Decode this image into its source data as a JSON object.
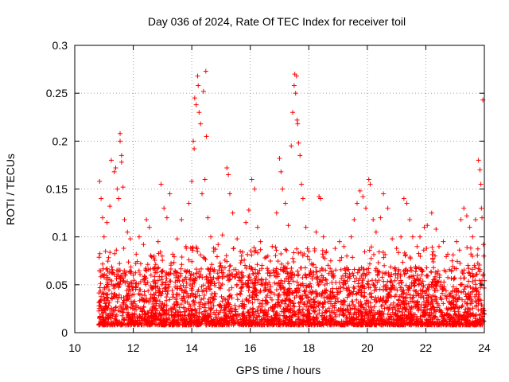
{
  "chart_data": {
    "type": "scatter",
    "title": "Day 036 of 2024, Rate Of TEC Index for receiver toil",
    "xlabel": "GPS time / hours",
    "ylabel": "ROTI / TECUs",
    "xlim": [
      10,
      24
    ],
    "ylim": [
      0,
      0.3
    ],
    "x_ticks": [
      10,
      12,
      14,
      16,
      18,
      20,
      22,
      24
    ],
    "y_ticks": [
      0,
      0.05,
      0.1,
      0.15,
      0.2,
      0.25,
      0.3
    ],
    "x_tick_labels": [
      "10",
      "12",
      "14",
      "16",
      "18",
      "20",
      "22",
      "24"
    ],
    "y_tick_labels": [
      "0",
      "0.05",
      "0.1",
      "0.15",
      "0.2",
      "0.25",
      "0.3"
    ],
    "grid": true,
    "marker": "+",
    "color": "#ff0000",
    "series": [
      {
        "name": "ROTI",
        "points": [
          [
            10.85,
            0.158
          ],
          [
            10.9,
            0.14
          ],
          [
            10.95,
            0.12
          ],
          [
            11.0,
            0.1
          ],
          [
            11.05,
            0.085
          ],
          [
            11.1,
            0.115
          ],
          [
            11.2,
            0.132
          ],
          [
            11.25,
            0.18
          ],
          [
            11.35,
            0.168
          ],
          [
            11.4,
            0.172
          ],
          [
            11.45,
            0.15
          ],
          [
            11.5,
            0.14
          ],
          [
            11.55,
            0.208
          ],
          [
            11.55,
            0.2
          ],
          [
            11.6,
            0.185
          ],
          [
            11.6,
            0.178
          ],
          [
            11.65,
            0.152
          ],
          [
            11.7,
            0.118
          ],
          [
            11.8,
            0.105
          ],
          [
            11.9,
            0.098
          ],
          [
            12.0,
            0.06
          ],
          [
            12.1,
            0.082
          ],
          [
            12.2,
            0.1
          ],
          [
            12.35,
            0.092
          ],
          [
            12.45,
            0.118
          ],
          [
            12.55,
            0.11
          ],
          [
            12.7,
            0.078
          ],
          [
            12.85,
            0.095
          ],
          [
            12.95,
            0.155
          ],
          [
            13.05,
            0.13
          ],
          [
            13.15,
            0.12
          ],
          [
            13.25,
            0.145
          ],
          [
            13.35,
            0.082
          ],
          [
            13.5,
            0.098
          ],
          [
            13.65,
            0.118
          ],
          [
            13.8,
            0.09
          ],
          [
            13.9,
            0.135
          ],
          [
            14.0,
            0.158
          ],
          [
            14.05,
            0.2
          ],
          [
            14.08,
            0.192
          ],
          [
            14.1,
            0.245
          ],
          [
            14.15,
            0.238
          ],
          [
            14.2,
            0.268
          ],
          [
            14.22,
            0.258
          ],
          [
            14.25,
            0.23
          ],
          [
            14.3,
            0.218
          ],
          [
            14.35,
            0.145
          ],
          [
            14.4,
            0.252
          ],
          [
            14.45,
            0.16
          ],
          [
            14.48,
            0.273
          ],
          [
            14.5,
            0.205
          ],
          [
            14.55,
            0.12
          ],
          [
            14.65,
            0.1
          ],
          [
            14.75,
            0.085
          ],
          [
            14.9,
            0.092
          ],
          [
            15.05,
            0.102
          ],
          [
            15.2,
            0.172
          ],
          [
            15.25,
            0.165
          ],
          [
            15.3,
            0.145
          ],
          [
            15.4,
            0.125
          ],
          [
            15.55,
            0.098
          ],
          [
            15.7,
            0.08
          ],
          [
            15.85,
            0.115
          ],
          [
            15.95,
            0.128
          ],
          [
            16.05,
            0.16
          ],
          [
            16.15,
            0.15
          ],
          [
            16.25,
            0.11
          ],
          [
            16.35,
            0.095
          ],
          [
            16.5,
            0.078
          ],
          [
            16.6,
            0.08
          ],
          [
            16.75,
            0.09
          ],
          [
            16.9,
            0.125
          ],
          [
            17.0,
            0.182
          ],
          [
            17.05,
            0.168
          ],
          [
            17.1,
            0.15
          ],
          [
            17.2,
            0.135
          ],
          [
            17.3,
            0.112
          ],
          [
            17.4,
            0.195
          ],
          [
            17.45,
            0.23
          ],
          [
            17.5,
            0.258
          ],
          [
            17.52,
            0.27
          ],
          [
            17.55,
            0.25
          ],
          [
            17.58,
            0.268
          ],
          [
            17.6,
            0.222
          ],
          [
            17.62,
            0.218
          ],
          [
            17.65,
            0.198
          ],
          [
            17.7,
            0.185
          ],
          [
            17.75,
            0.155
          ],
          [
            17.8,
            0.14
          ],
          [
            17.9,
            0.11
          ],
          [
            18.0,
            0.085
          ],
          [
            18.1,
            0.072
          ],
          [
            18.25,
            0.105
          ],
          [
            18.35,
            0.142
          ],
          [
            18.4,
            0.14
          ],
          [
            18.5,
            0.1
          ],
          [
            18.6,
            0.085
          ],
          [
            18.75,
            0.075
          ],
          [
            18.9,
            0.088
          ],
          [
            19.05,
            0.095
          ],
          [
            19.2,
            0.09
          ],
          [
            19.3,
            0.08
          ],
          [
            19.45,
            0.1
          ],
          [
            19.55,
            0.118
          ],
          [
            19.65,
            0.135
          ],
          [
            19.75,
            0.148
          ],
          [
            19.85,
            0.142
          ],
          [
            19.95,
            0.13
          ],
          [
            20.05,
            0.16
          ],
          [
            20.1,
            0.155
          ],
          [
            20.2,
            0.118
          ],
          [
            20.3,
            0.105
          ],
          [
            20.45,
            0.12
          ],
          [
            20.55,
            0.145
          ],
          [
            20.7,
            0.13
          ],
          [
            20.85,
            0.098
          ],
          [
            21.0,
            0.088
          ],
          [
            21.15,
            0.1
          ],
          [
            21.25,
            0.14
          ],
          [
            21.35,
            0.135
          ],
          [
            21.45,
            0.118
          ],
          [
            21.55,
            0.1
          ],
          [
            21.7,
            0.09
          ],
          [
            21.8,
            0.1
          ],
          [
            21.95,
            0.11
          ],
          [
            22.05,
            0.112
          ],
          [
            22.2,
            0.125
          ],
          [
            22.35,
            0.108
          ],
          [
            22.45,
            0.09
          ],
          [
            22.6,
            0.095
          ],
          [
            22.75,
            0.082
          ],
          [
            22.9,
            0.075
          ],
          [
            23.05,
            0.095
          ],
          [
            23.2,
            0.118
          ],
          [
            23.3,
            0.13
          ],
          [
            23.4,
            0.122
          ],
          [
            23.5,
            0.11
          ],
          [
            23.6,
            0.1
          ],
          [
            23.7,
            0.118
          ],
          [
            23.8,
            0.18
          ],
          [
            23.85,
            0.17
          ],
          [
            23.88,
            0.155
          ],
          [
            23.9,
            0.13
          ],
          [
            23.92,
            0.12
          ],
          [
            23.95,
            0.243
          ],
          [
            23.97,
            0.092
          ],
          [
            23.98,
            0.08
          ]
        ]
      }
    ]
  }
}
